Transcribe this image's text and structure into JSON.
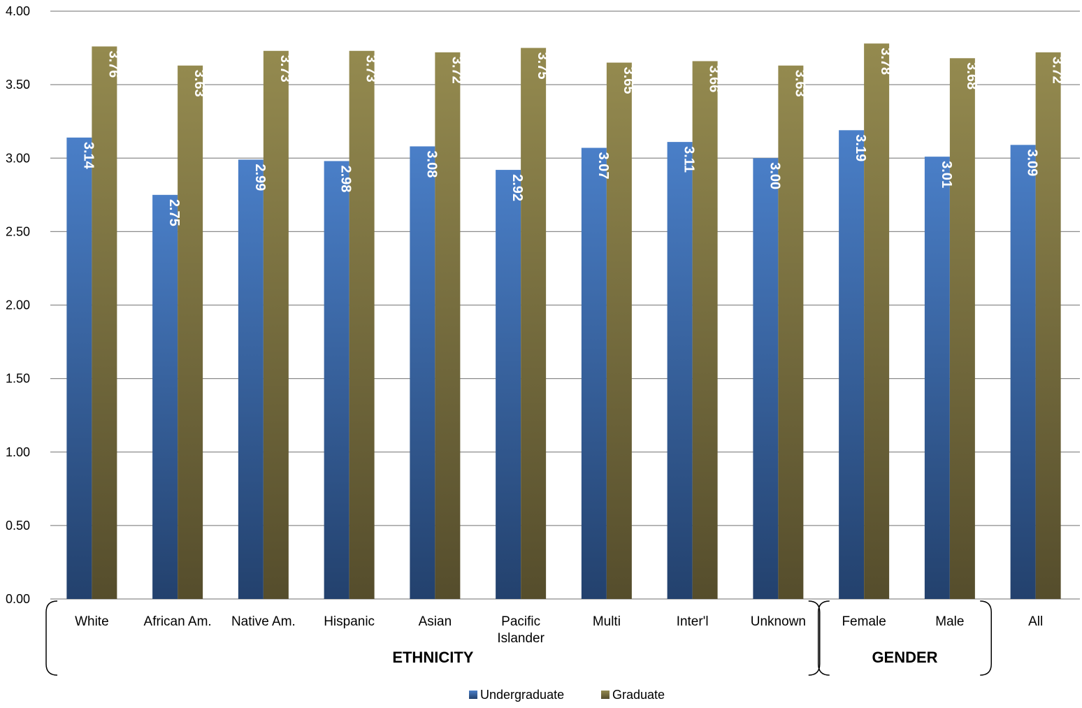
{
  "chart_data": {
    "type": "bar",
    "categories": [
      "White",
      "African Am.",
      "Native Am.",
      "Hispanic",
      "Asian",
      "Pacific Islander",
      "Multi",
      "Inter'l",
      "Unknown",
      "Female",
      "Male",
      "All"
    ],
    "series": [
      {
        "name": "Undergraduate",
        "values": [
          3.14,
          2.75,
          2.99,
          2.98,
          3.08,
          2.92,
          3.07,
          3.11,
          3.0,
          3.19,
          3.01,
          3.09
        ],
        "labels": [
          "3.14",
          "2.75",
          "2.99",
          "2.98",
          "3.08",
          "2.92",
          "3.07",
          "3.11",
          "3.00",
          "3.19",
          "3.01",
          "3.09"
        ]
      },
      {
        "name": "Graduate",
        "values": [
          3.76,
          3.63,
          3.73,
          3.73,
          3.72,
          3.75,
          3.65,
          3.66,
          3.63,
          3.78,
          3.68,
          3.72
        ],
        "labels": [
          "3.76",
          "3.63",
          "3.73",
          "3.73",
          "3.72",
          "3.75",
          "3.65",
          "3.66",
          "3.63",
          "3.78",
          "3.68",
          "3.72"
        ]
      }
    ],
    "groups": [
      {
        "label": "ETHNICITY",
        "start": 0,
        "end": 8
      },
      {
        "label": "GENDER",
        "start": 9,
        "end": 10
      }
    ],
    "yticks": [
      "0.00",
      "0.50",
      "1.00",
      "1.50",
      "2.00",
      "2.50",
      "3.00",
      "3.50",
      "4.00"
    ],
    "ylim": [
      0,
      4
    ],
    "grid": true,
    "legend_position": "bottom",
    "colors": {
      "undergrad_top": "#4a7fc8",
      "undergrad_bottom": "#23416d",
      "grad_top": "#948a4f",
      "grad_bottom": "#554d2c",
      "grid": "#8c8c8c"
    }
  }
}
